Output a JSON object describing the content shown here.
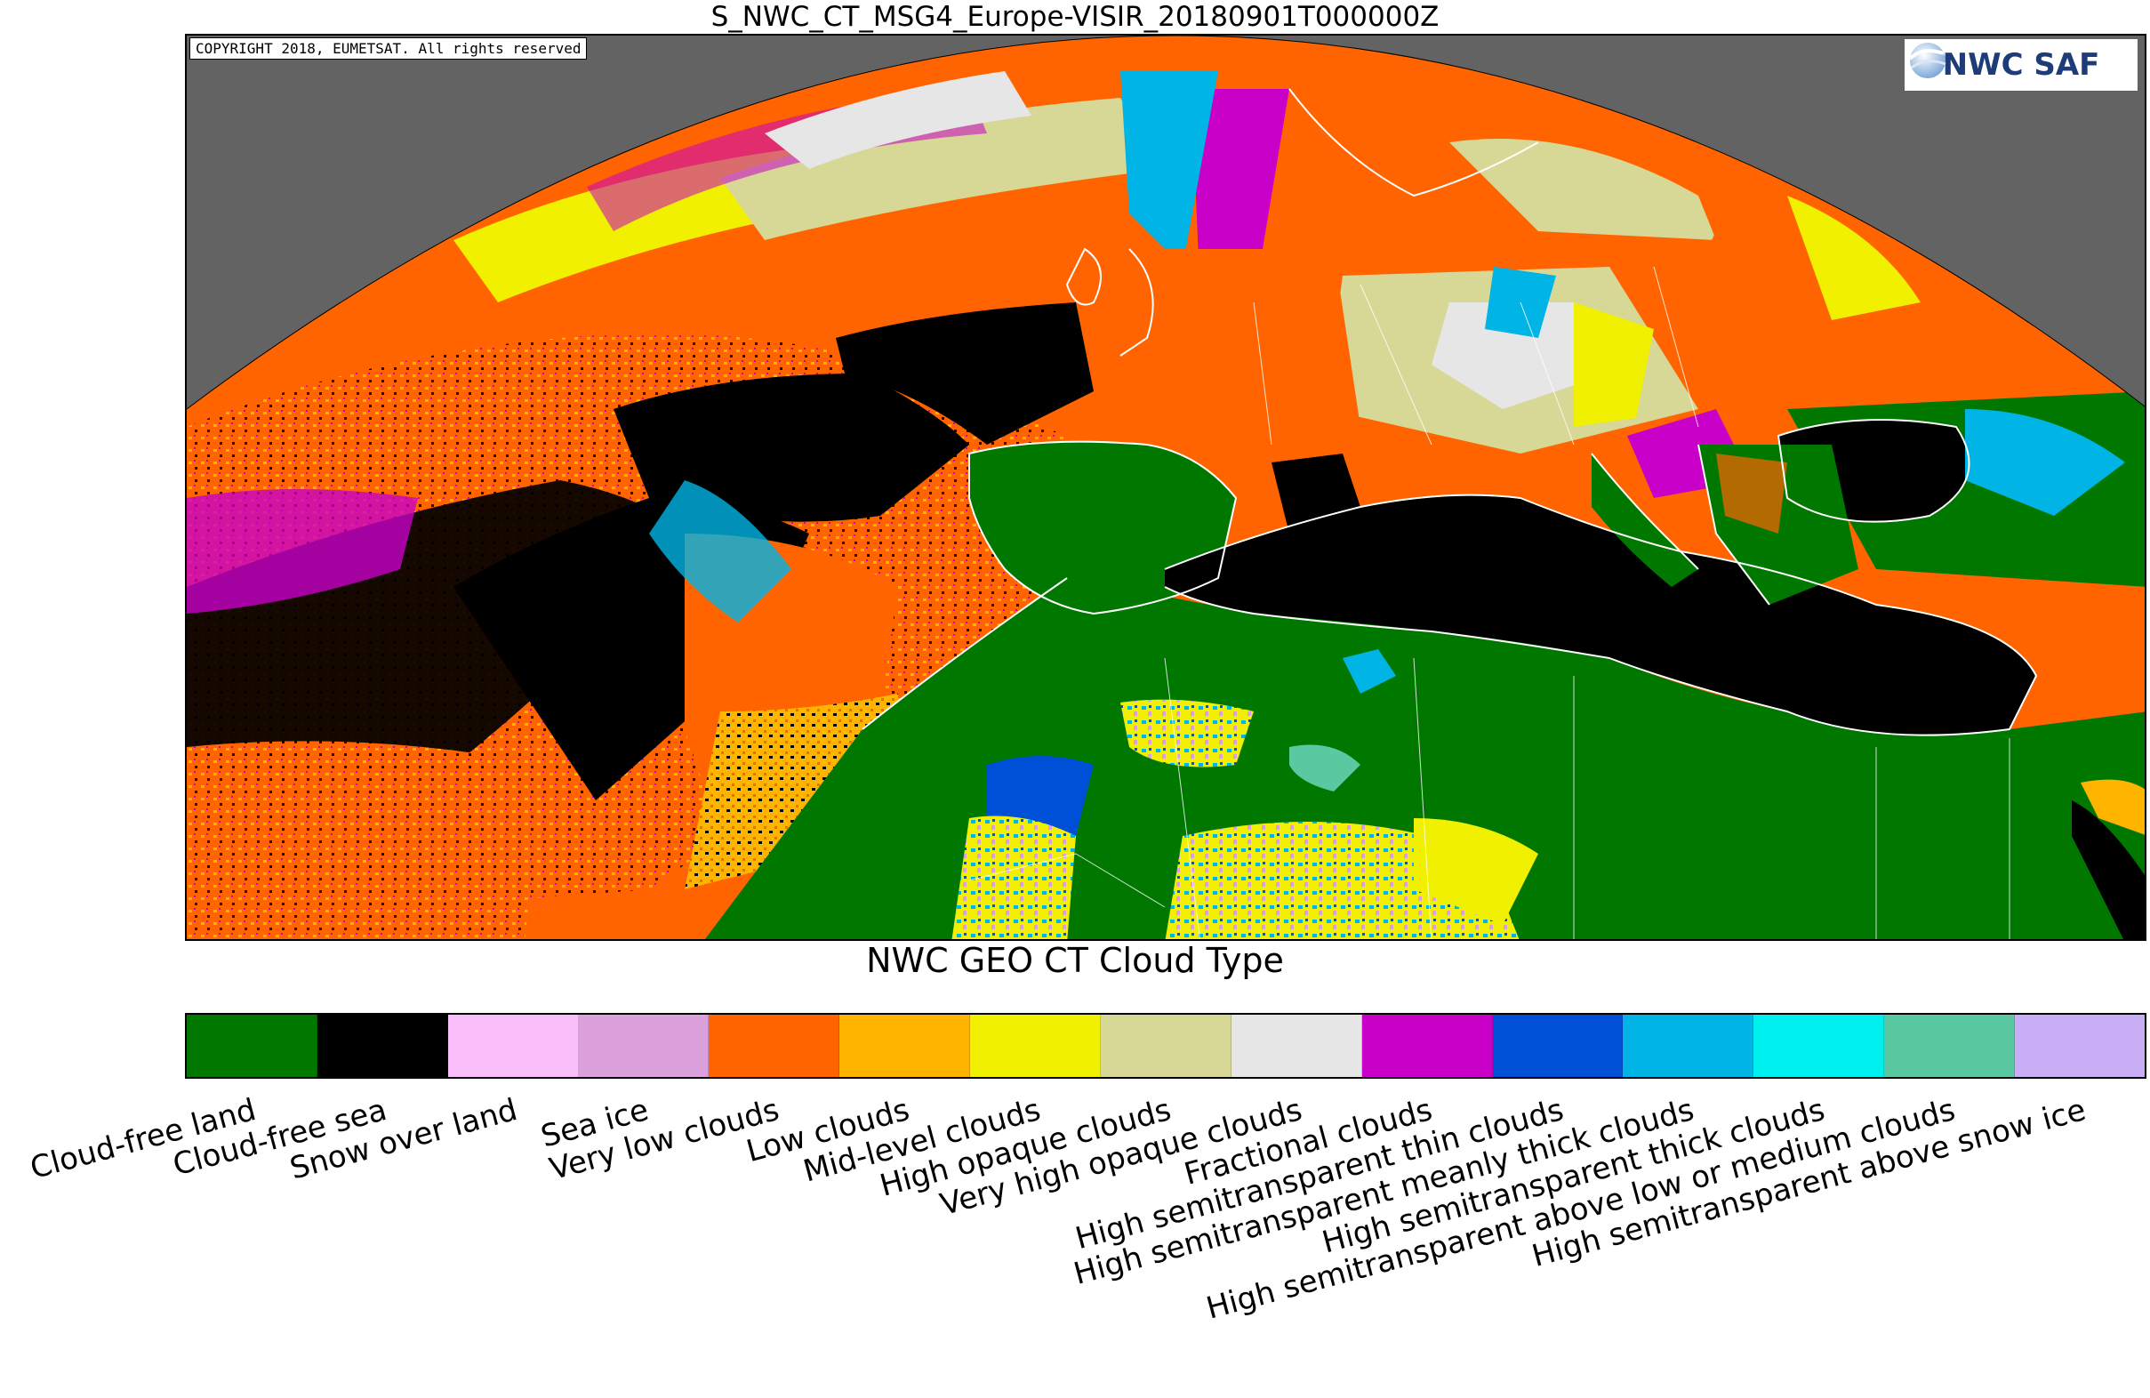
{
  "title": "S_NWC_CT_MSG4_Europe-VISIR_20180901T000000Z",
  "copyright": "COPYRIGHT 2018, EUMETSAT. All rights reserved",
  "logo": {
    "text": "NWC SAF",
    "icon": "globe-swirl-icon"
  },
  "colorbar_title": "NWC GEO CT Cloud Type",
  "legend": [
    {
      "label": "Cloud-free land",
      "color": "#007800"
    },
    {
      "label": "Cloud-free sea",
      "color": "#000000"
    },
    {
      "label": "Snow over land",
      "color": "#fabefa"
    },
    {
      "label": "Sea ice",
      "color": "#dca0dc"
    },
    {
      "label": "Very low clouds",
      "color": "#ff6400"
    },
    {
      "label": "Low clouds",
      "color": "#ffb400"
    },
    {
      "label": "Mid-level clouds",
      "color": "#f0f000"
    },
    {
      "label": "High opaque clouds",
      "color": "#d7d796"
    },
    {
      "label": "Very high opaque clouds",
      "color": "#e6e6e6"
    },
    {
      "label": "Fractional clouds",
      "color": "#c800c8"
    },
    {
      "label": "High semitransparent thin clouds",
      "color": "#0050d7"
    },
    {
      "label": "High semitransparent meanly thick clouds",
      "color": "#00b4e6"
    },
    {
      "label": "High semitransparent thick clouds",
      "color": "#00f0f0"
    },
    {
      "label": "High semitransparent above low or medium clouds",
      "color": "#5ac8a0"
    },
    {
      "label": "High semitransparent above snow ice",
      "color": "#c8aff5"
    }
  ],
  "colors": {
    "space": "#636363"
  }
}
